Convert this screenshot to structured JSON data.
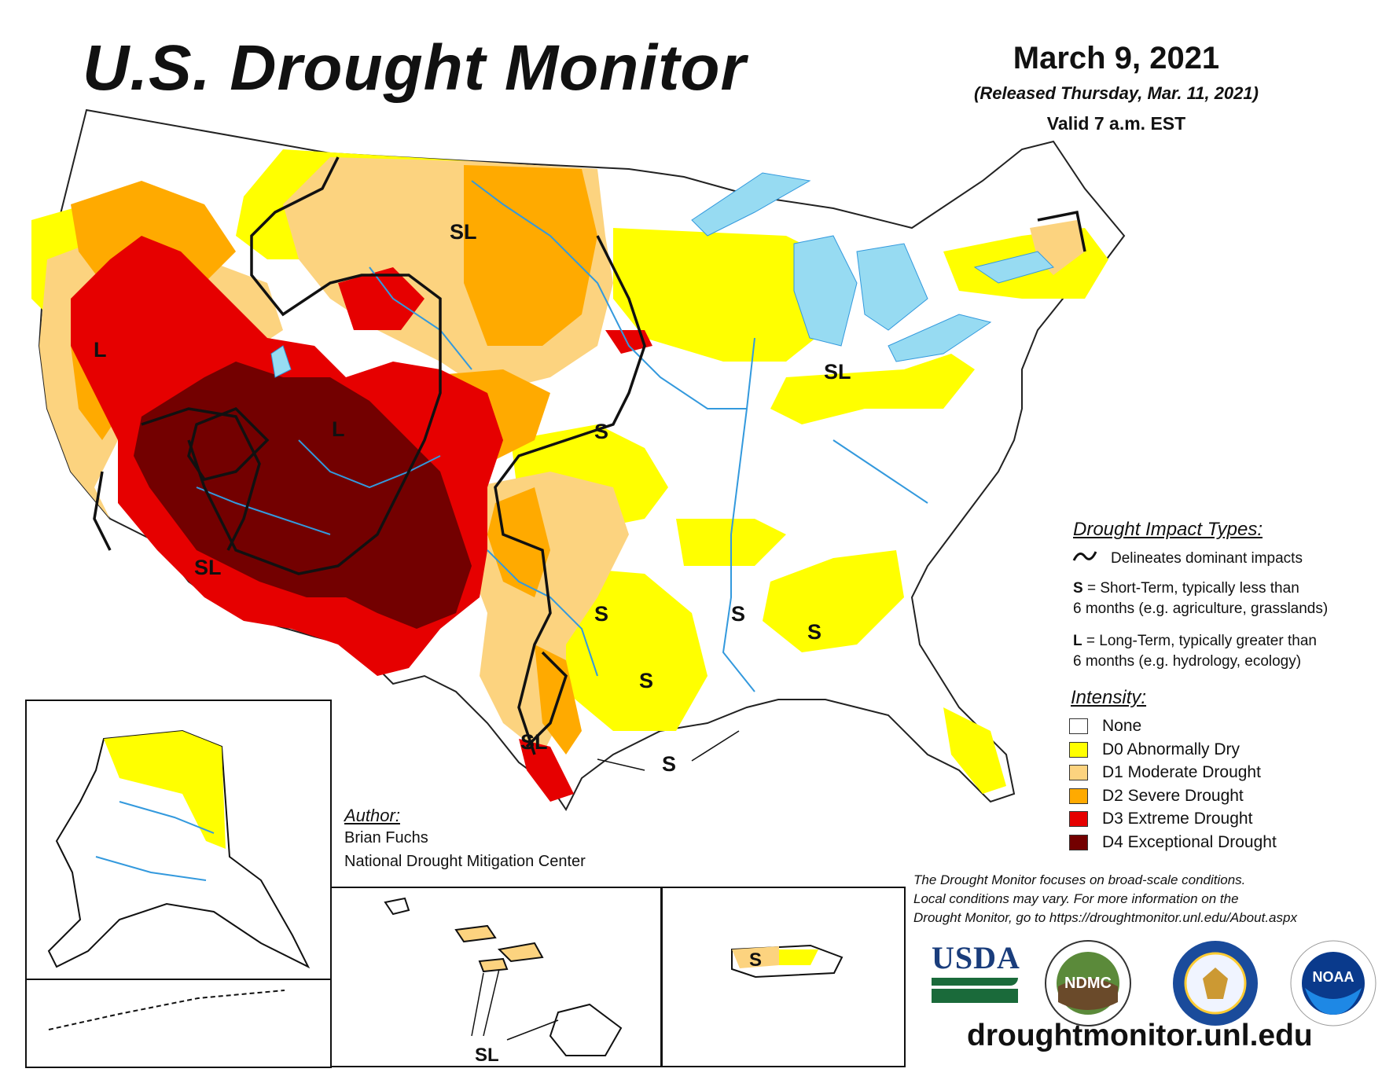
{
  "header": {
    "title": "U.S. Drought Monitor",
    "date": "March 9, 2021",
    "released": "(Released Thursday, Mar. 11, 2021)",
    "valid": "Valid 7 a.m. EST"
  },
  "map_labels": {
    "sl_montana": "SL",
    "l_nevada": "L",
    "l_utah": "L",
    "s_kansas": "S",
    "sl_great_lakes": "SL",
    "sl_arizona": "SL",
    "s_texas_north": "S",
    "s_arkansas": "S",
    "s_alabama": "S",
    "s_texas_east": "S",
    "sl_south_texas": "SL",
    "s_gulf": "S",
    "s_puerto_rico": "S",
    "sl_hawaii": "SL"
  },
  "legend": {
    "impact_heading": "Drought Impact Types:",
    "delineates": "Delineates dominant impacts",
    "short_term_key": "S",
    "short_term_text": " = Short-Term, typically less than",
    "short_term_text2": "6 months (e.g. agriculture, grasslands)",
    "long_term_key": "L",
    "long_term_text": " = Long-Term, typically greater than",
    "long_term_text2": "6 months (e.g. hydrology, ecology)",
    "intensity_heading": "Intensity:",
    "levels": [
      {
        "label": "None",
        "color": "#ffffff"
      },
      {
        "label": "D0 Abnormally Dry",
        "color": "#ffff00"
      },
      {
        "label": "D1 Moderate Drought",
        "color": "#fcd37f"
      },
      {
        "label": "D2 Severe Drought",
        "color": "#ffaa00"
      },
      {
        "label": "D3 Extreme Drought",
        "color": "#e60000"
      },
      {
        "label": "D4 Exceptional Drought",
        "color": "#730000"
      }
    ]
  },
  "author": {
    "heading": "Author:",
    "name": "Brian Fuchs",
    "org": "National Drought Mitigation Center"
  },
  "disclaimer": {
    "line1": "The Drought Monitor focuses on broad-scale conditions.",
    "line2": "Local conditions may vary. For more information on the",
    "line3": "Drought Monitor, go to https://droughtmonitor.unl.edu/About.aspx"
  },
  "logos": {
    "usda": "USDA",
    "ndmc": "NDMC",
    "noaa": "NOAA"
  },
  "footer": {
    "url": "droughtmonitor.unl.edu"
  },
  "colors": {
    "water": "#97dbf2",
    "river": "#3399dd",
    "boundary": "#111111"
  }
}
